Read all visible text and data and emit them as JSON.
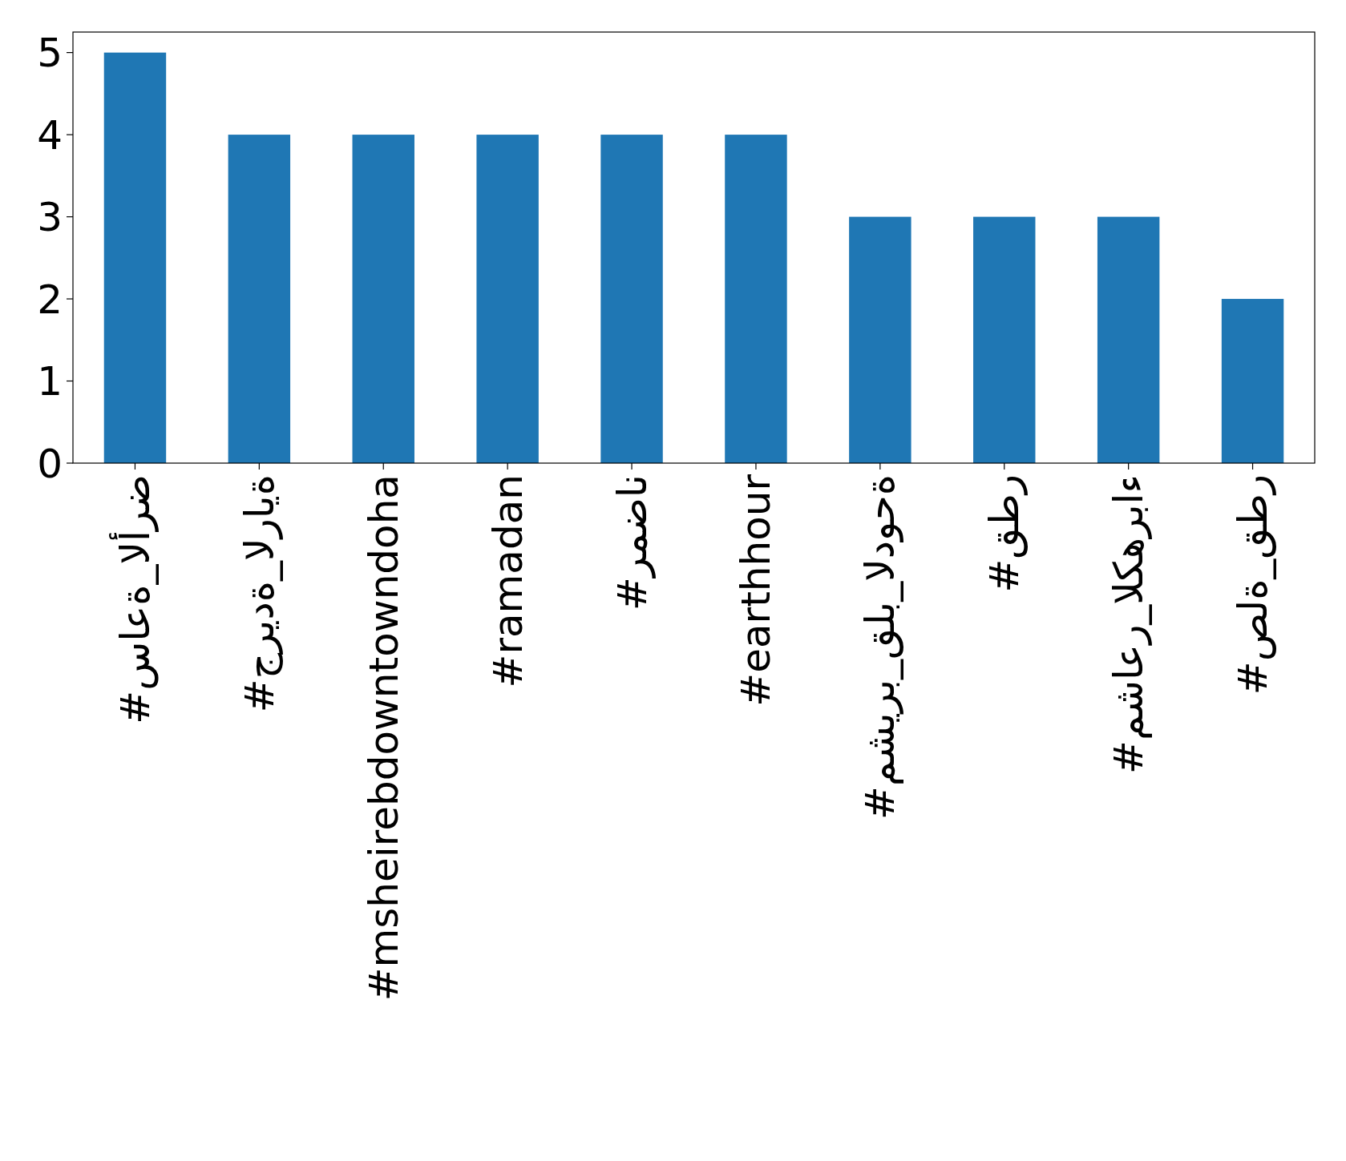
{
  "chart_data": {
    "type": "bar",
    "categories": [
      "#ساعة_الأرض",
      "#جريدة_الراية",
      "#msheirebdowntowndoha",
      "#ramadan",
      "#رمضان",
      "#earthhour",
      "#مشيرب_قلب_الدوحة",
      "#قطر",
      "#مشاعر_الكهرباء",
      "#صلة_قطر"
    ],
    "values": [
      5,
      4,
      4,
      4,
      4,
      4,
      3,
      3,
      3,
      2
    ],
    "color": "#1f77b4",
    "ylim": [
      0,
      5.25
    ],
    "yticks": [
      0,
      1,
      2,
      3,
      4,
      5
    ],
    "grid": false
  }
}
